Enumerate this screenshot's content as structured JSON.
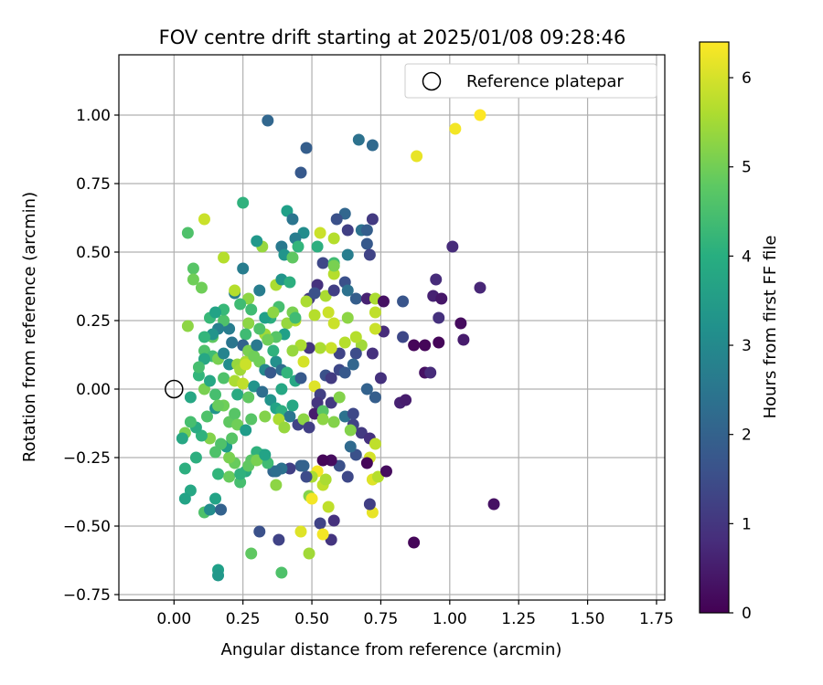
{
  "chart_data": {
    "type": "scatter",
    "title": "FOV centre drift starting at 2025/01/08 09:28:46",
    "xlabel": "Angular distance from reference (arcmin)",
    "ylabel": "Rotation from reference (arcmin)",
    "xlim": [
      -0.2,
      1.78
    ],
    "ylim": [
      -0.77,
      1.22
    ],
    "xticks": [
      0.0,
      0.25,
      0.5,
      0.75,
      1.0,
      1.25,
      1.5,
      1.75
    ],
    "xtick_labels": [
      "0.00",
      "0.25",
      "0.50",
      "0.75",
      "1.00",
      "1.25",
      "1.50",
      "1.75"
    ],
    "yticks": [
      -0.75,
      -0.5,
      -0.25,
      0.0,
      0.25,
      0.5,
      0.75,
      1.0
    ],
    "ytick_labels": [
      "−0.75",
      "−0.50",
      "−0.25",
      "0.00",
      "0.25",
      "0.50",
      "0.75",
      "1.00"
    ],
    "grid": true,
    "colormap": "viridis",
    "colorbar": {
      "label": "Hours from first FF file",
      "range": [
        0,
        6.4
      ],
      "ticks": [
        0,
        1,
        2,
        3,
        4,
        5,
        6
      ],
      "tick_labels": [
        "0",
        "1",
        "2",
        "3",
        "4",
        "5",
        "6"
      ]
    },
    "legend": {
      "position": "top-right",
      "entries": [
        {
          "label": "Reference platepar",
          "marker": "open-circle"
        }
      ]
    },
    "reference_point": {
      "x": 0.0,
      "y": 0.0
    },
    "points": [
      [
        1.11,
        1.0,
        6.4
      ],
      [
        1.02,
        0.95,
        6.3
      ],
      [
        0.88,
        0.85,
        6.2
      ],
      [
        0.34,
        0.98,
        2.1
      ],
      [
        0.48,
        0.88,
        1.9
      ],
      [
        0.67,
        0.91,
        2.4
      ],
      [
        0.72,
        0.89,
        2.2
      ],
      [
        0.46,
        0.79,
        1.8
      ],
      [
        0.11,
        0.62,
        5.9
      ],
      [
        0.05,
        0.57,
        4.6
      ],
      [
        0.25,
        0.68,
        4.1
      ],
      [
        0.41,
        0.65,
        3.6
      ],
      [
        0.43,
        0.62,
        2.5
      ],
      [
        0.62,
        0.64,
        2.1
      ],
      [
        0.59,
        0.62,
        1.6
      ],
      [
        0.53,
        0.57,
        5.9
      ],
      [
        0.58,
        0.55,
        5.7
      ],
      [
        0.68,
        0.58,
        2.4
      ],
      [
        0.72,
        0.62,
        1.1
      ],
      [
        0.7,
        0.58,
        1.9
      ],
      [
        0.63,
        0.58,
        1.2
      ],
      [
        0.47,
        0.57,
        3.1
      ],
      [
        0.44,
        0.55,
        2.7
      ],
      [
        0.52,
        0.52,
        4.0
      ],
      [
        0.7,
        0.53,
        1.8
      ],
      [
        0.71,
        0.49,
        1.3
      ],
      [
        0.63,
        0.49,
        2.7
      ],
      [
        0.54,
        0.46,
        1.4
      ],
      [
        0.45,
        0.52,
        4.2
      ],
      [
        0.39,
        0.52,
        2.6
      ],
      [
        0.32,
        0.52,
        5.4
      ],
      [
        0.3,
        0.54,
        3.4
      ],
      [
        0.18,
        0.48,
        5.7
      ],
      [
        0.25,
        0.44,
        2.7
      ],
      [
        0.4,
        0.49,
        3.3
      ],
      [
        0.43,
        0.48,
        4.8
      ],
      [
        0.58,
        0.46,
        4.4
      ],
      [
        0.58,
        0.42,
        5.7
      ],
      [
        1.01,
        0.52,
        0.8
      ],
      [
        0.07,
        0.44,
        4.7
      ],
      [
        0.07,
        0.4,
        5.0
      ],
      [
        0.1,
        0.37,
        5.0
      ],
      [
        0.22,
        0.35,
        2.7
      ],
      [
        0.27,
        0.33,
        5.3
      ],
      [
        0.31,
        0.36,
        2.7
      ],
      [
        0.37,
        0.38,
        5.6
      ],
      [
        0.39,
        0.4,
        3.3
      ],
      [
        0.42,
        0.39,
        4.0
      ],
      [
        0.49,
        0.33,
        1.1
      ],
      [
        0.52,
        0.38,
        0.9
      ],
      [
        0.55,
        0.34,
        5.6
      ],
      [
        0.58,
        0.36,
        1.2
      ],
      [
        0.62,
        0.39,
        1.6
      ],
      [
        0.63,
        0.36,
        2.4
      ],
      [
        0.66,
        0.33,
        1.9
      ],
      [
        0.7,
        0.33,
        0.6
      ],
      [
        0.73,
        0.33,
        5.6
      ],
      [
        0.76,
        0.32,
        0.3
      ],
      [
        0.83,
        0.32,
        1.7
      ],
      [
        0.95,
        0.4,
        0.8
      ],
      [
        0.94,
        0.34,
        0.6
      ],
      [
        0.97,
        0.33,
        0.4
      ],
      [
        0.96,
        0.26,
        0.9
      ],
      [
        1.04,
        0.24,
        0.2
      ],
      [
        1.11,
        0.37,
        0.7
      ],
      [
        1.05,
        0.18,
        0.5
      ],
      [
        0.96,
        0.17,
        0.1
      ],
      [
        0.91,
        0.16,
        0.1
      ],
      [
        0.87,
        0.16,
        0.1
      ],
      [
        0.83,
        0.19,
        1.4
      ],
      [
        0.76,
        0.21,
        0.8
      ],
      [
        0.73,
        0.22,
        5.9
      ],
      [
        0.73,
        0.28,
        5.8
      ],
      [
        0.68,
        0.16,
        5.5
      ],
      [
        0.72,
        0.13,
        0.9
      ],
      [
        0.66,
        0.13,
        1.5
      ],
      [
        0.62,
        0.17,
        5.7
      ],
      [
        0.6,
        0.13,
        1.3
      ],
      [
        0.57,
        0.15,
        5.9
      ],
      [
        0.58,
        0.24,
        5.9
      ],
      [
        0.56,
        0.28,
        5.9
      ],
      [
        0.51,
        0.27,
        5.7
      ],
      [
        0.53,
        0.15,
        5.6
      ],
      [
        0.49,
        0.15,
        1.0
      ],
      [
        0.47,
        0.1,
        6.0
      ],
      [
        0.46,
        0.16,
        5.6
      ],
      [
        0.43,
        0.14,
        5.4
      ],
      [
        0.44,
        0.25,
        5.7
      ],
      [
        0.43,
        0.28,
        5.1
      ],
      [
        0.41,
        0.24,
        5.4
      ],
      [
        0.38,
        0.3,
        4.5
      ],
      [
        0.35,
        0.26,
        4.0
      ],
      [
        0.33,
        0.26,
        3.6
      ],
      [
        0.33,
        0.2,
        5.5
      ],
      [
        0.31,
        0.22,
        4.6
      ],
      [
        0.27,
        0.24,
        5.3
      ],
      [
        0.26,
        0.2,
        4.4
      ],
      [
        0.25,
        0.16,
        2.0
      ],
      [
        0.21,
        0.17,
        2.5
      ],
      [
        0.2,
        0.22,
        2.7
      ],
      [
        0.18,
        0.25,
        4.6
      ],
      [
        0.16,
        0.22,
        2.8
      ],
      [
        0.13,
        0.26,
        4.3
      ],
      [
        0.14,
        0.19,
        4.8
      ],
      [
        0.11,
        0.14,
        4.6
      ],
      [
        0.14,
        0.12,
        4.4
      ],
      [
        0.11,
        0.11,
        3.8
      ],
      [
        0.16,
        0.11,
        5.1
      ],
      [
        0.18,
        0.13,
        2.9
      ],
      [
        0.2,
        0.09,
        3.1
      ],
      [
        0.23,
        0.09,
        5.4
      ],
      [
        0.24,
        0.07,
        5.5
      ],
      [
        0.26,
        0.1,
        5.6
      ],
      [
        0.27,
        0.14,
        5.1
      ],
      [
        0.29,
        0.12,
        5.0
      ],
      [
        0.31,
        0.1,
        5.0
      ],
      [
        0.33,
        0.07,
        3.0
      ],
      [
        0.35,
        0.06,
        1.8
      ],
      [
        0.37,
        0.1,
        3.2
      ],
      [
        0.39,
        0.07,
        2.3
      ],
      [
        0.41,
        0.06,
        4.2
      ],
      [
        0.44,
        0.03,
        3.8
      ],
      [
        0.46,
        0.04,
        1.8
      ],
      [
        0.51,
        0.01,
        6.1
      ],
      [
        0.53,
        -0.02,
        1.2
      ],
      [
        0.55,
        0.05,
        1.6
      ],
      [
        0.57,
        0.04,
        1.1
      ],
      [
        0.6,
        0.07,
        1.4
      ],
      [
        0.62,
        0.06,
        1.8
      ],
      [
        0.65,
        0.09,
        2.1
      ],
      [
        0.7,
        0.0,
        2.0
      ],
      [
        0.73,
        -0.03,
        1.9
      ],
      [
        0.75,
        0.04,
        0.9
      ],
      [
        0.82,
        -0.05,
        0.6
      ],
      [
        0.84,
        -0.04,
        0.5
      ],
      [
        0.91,
        0.06,
        0.3
      ],
      [
        0.93,
        0.06,
        0.8
      ],
      [
        0.09,
        0.05,
        4.2
      ],
      [
        0.11,
        0.0,
        5.1
      ],
      [
        0.13,
        0.03,
        3.8
      ],
      [
        0.15,
        -0.02,
        4.5
      ],
      [
        0.18,
        0.04,
        4.6
      ],
      [
        0.22,
        0.03,
        5.6
      ],
      [
        0.23,
        -0.02,
        3.9
      ],
      [
        0.25,
        0.02,
        5.8
      ],
      [
        0.27,
        -0.03,
        4.8
      ],
      [
        0.29,
        0.01,
        3.3
      ],
      [
        0.32,
        -0.01,
        2.3
      ],
      [
        0.35,
        -0.04,
        3.3
      ],
      [
        0.37,
        -0.07,
        3.7
      ],
      [
        0.39,
        -0.08,
        4.0
      ],
      [
        0.42,
        -0.1,
        2.5
      ],
      [
        0.45,
        -0.13,
        1.3
      ],
      [
        0.47,
        -0.11,
        5.3
      ],
      [
        0.49,
        -0.14,
        1.2
      ],
      [
        0.51,
        -0.09,
        0.5
      ],
      [
        0.52,
        -0.05,
        1.0
      ],
      [
        0.54,
        -0.08,
        4.7
      ],
      [
        0.57,
        -0.05,
        1.1
      ],
      [
        0.6,
        -0.03,
        5.2
      ],
      [
        0.62,
        -0.1,
        2.4
      ],
      [
        0.65,
        -0.13,
        1.3
      ],
      [
        0.68,
        -0.16,
        1.1
      ],
      [
        0.71,
        -0.18,
        0.9
      ],
      [
        0.73,
        -0.2,
        5.8
      ],
      [
        0.71,
        -0.25,
        6.0
      ],
      [
        0.7,
        -0.27,
        0.1
      ],
      [
        0.66,
        -0.24,
        1.6
      ],
      [
        0.63,
        -0.32,
        1.4
      ],
      [
        0.6,
        -0.28,
        1.6
      ],
      [
        0.57,
        -0.26,
        0.2
      ],
      [
        0.54,
        -0.26,
        0.1
      ],
      [
        0.52,
        -0.3,
        6.3
      ],
      [
        0.5,
        -0.32,
        5.6
      ],
      [
        0.48,
        -0.32,
        1.5
      ],
      [
        0.46,
        -0.28,
        1.9
      ],
      [
        0.42,
        -0.29,
        1.2
      ],
      [
        0.39,
        -0.29,
        2.4
      ],
      [
        0.36,
        -0.3,
        2.1
      ],
      [
        0.34,
        -0.27,
        4.4
      ],
      [
        0.32,
        -0.24,
        3.9
      ],
      [
        0.3,
        -0.23,
        4.1
      ],
      [
        0.28,
        -0.26,
        4.7
      ],
      [
        0.26,
        -0.3,
        3.9
      ],
      [
        0.24,
        -0.34,
        4.5
      ],
      [
        0.22,
        -0.27,
        4.9
      ],
      [
        0.2,
        -0.25,
        5.1
      ],
      [
        0.19,
        -0.21,
        3.5
      ],
      [
        0.17,
        -0.2,
        4.6
      ],
      [
        0.15,
        -0.23,
        4.6
      ],
      [
        0.13,
        -0.18,
        5.2
      ],
      [
        0.1,
        -0.17,
        4.1
      ],
      [
        0.08,
        -0.14,
        3.9
      ],
      [
        0.06,
        -0.12,
        4.5
      ],
      [
        0.04,
        -0.16,
        5.1
      ],
      [
        0.03,
        -0.18,
        3.8
      ],
      [
        0.08,
        -0.25,
        4.0
      ],
      [
        0.04,
        -0.29,
        4.0
      ],
      [
        0.06,
        -0.37,
        3.8
      ],
      [
        0.04,
        -0.4,
        3.7
      ],
      [
        0.11,
        -0.45,
        4.6
      ],
      [
        0.13,
        -0.44,
        3.1
      ],
      [
        0.15,
        -0.4,
        3.7
      ],
      [
        0.17,
        -0.44,
        2.0
      ],
      [
        0.16,
        -0.31,
        4.2
      ],
      [
        0.2,
        -0.32,
        4.9
      ],
      [
        0.24,
        -0.31,
        4.1
      ],
      [
        0.27,
        -0.28,
        4.8
      ],
      [
        0.3,
        -0.26,
        5.1
      ],
      [
        0.33,
        -0.24,
        3.7
      ],
      [
        0.37,
        -0.35,
        5.3
      ],
      [
        0.37,
        -0.3,
        2.3
      ],
      [
        0.47,
        -0.28,
        2.0
      ],
      [
        0.49,
        -0.39,
        5.2
      ],
      [
        0.5,
        -0.4,
        6.3
      ],
      [
        0.54,
        -0.35,
        5.8
      ],
      [
        0.55,
        -0.33,
        5.6
      ],
      [
        0.56,
        -0.43,
        5.8
      ],
      [
        0.53,
        -0.49,
        1.3
      ],
      [
        0.58,
        -0.48,
        0.9
      ],
      [
        0.57,
        -0.55,
        1.0
      ],
      [
        0.54,
        -0.53,
        6.3
      ],
      [
        0.46,
        -0.52,
        6.1
      ],
      [
        0.49,
        -0.6,
        5.5
      ],
      [
        0.38,
        -0.55,
        1.3
      ],
      [
        0.28,
        -0.6,
        4.8
      ],
      [
        0.31,
        -0.52,
        1.6
      ],
      [
        0.39,
        -0.67,
        4.6
      ],
      [
        0.16,
        -0.66,
        3.6
      ],
      [
        0.16,
        -0.68,
        3.4
      ],
      [
        0.72,
        -0.45,
        6.2
      ],
      [
        0.71,
        -0.42,
        1.2
      ],
      [
        0.72,
        -0.33,
        6.1
      ],
      [
        0.74,
        -0.32,
        5.7
      ],
      [
        0.77,
        -0.3,
        0.2
      ],
      [
        0.87,
        -0.56,
        0.1
      ],
      [
        1.16,
        -0.42,
        0.3
      ],
      [
        0.54,
        -0.11,
        5.3
      ],
      [
        0.58,
        -0.12,
        5.2
      ],
      [
        0.64,
        -0.15,
        5.2
      ],
      [
        0.64,
        -0.21,
        2.2
      ],
      [
        0.65,
        -0.09,
        1.4
      ],
      [
        0.44,
        0.26,
        4.4
      ],
      [
        0.4,
        0.2,
        3.6
      ],
      [
        0.37,
        0.19,
        4.7
      ],
      [
        0.34,
        0.18,
        5.0
      ],
      [
        0.36,
        0.14,
        4.1
      ],
      [
        0.3,
        0.16,
        2.6
      ],
      [
        0.28,
        0.29,
        4.4
      ],
      [
        0.24,
        0.31,
        4.4
      ],
      [
        0.22,
        0.36,
        5.7
      ],
      [
        0.18,
        0.29,
        4.3
      ],
      [
        0.15,
        0.28,
        3.7
      ],
      [
        0.14,
        0.2,
        3.3
      ],
      [
        0.11,
        0.19,
        4.2
      ],
      [
        0.05,
        0.23,
        5.3
      ],
      [
        0.09,
        0.08,
        4.5
      ],
      [
        0.12,
        -0.1,
        4.6
      ],
      [
        0.15,
        -0.07,
        3.3
      ],
      [
        0.2,
        -0.12,
        4.8
      ],
      [
        0.22,
        -0.09,
        4.7
      ],
      [
        0.23,
        -0.13,
        5.0
      ],
      [
        0.26,
        -0.15,
        3.5
      ],
      [
        0.28,
        -0.11,
        4.7
      ],
      [
        0.33,
        -0.1,
        5.2
      ],
      [
        0.38,
        -0.11,
        5.6
      ],
      [
        0.4,
        -0.14,
        5.4
      ],
      [
        0.26,
        0.09,
        5.9
      ],
      [
        0.18,
        -0.06,
        5.0
      ],
      [
        0.06,
        -0.03,
        3.8
      ],
      [
        0.39,
        0.0,
        3.8
      ],
      [
        0.21,
        -0.18,
        4.7
      ],
      [
        0.16,
        -0.06,
        4.9
      ],
      [
        0.43,
        -0.06,
        3.8
      ],
      [
        0.58,
        0.45,
        5.1
      ],
      [
        0.66,
        0.19,
        5.7
      ],
      [
        0.36,
        0.28,
        5.3
      ],
      [
        0.48,
        0.32,
        5.6
      ],
      [
        0.51,
        0.35,
        1.6
      ],
      [
        0.63,
        0.26,
        5.3
      ]
    ]
  }
}
